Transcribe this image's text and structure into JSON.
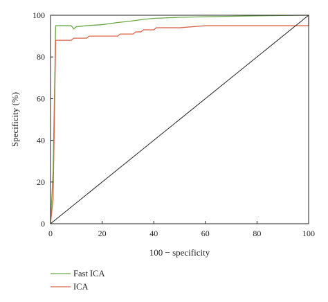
{
  "chart_data": {
    "type": "line",
    "xlabel": "100 − specificity",
    "ylabel": "Specificity (%)",
    "xlim": [
      0,
      100
    ],
    "ylim": [
      0,
      100
    ],
    "x_ticks": [
      0,
      20,
      40,
      60,
      80,
      100
    ],
    "y_ticks": [
      0,
      20,
      40,
      60,
      80,
      100
    ],
    "grid": false,
    "legend_position": "bottom-left",
    "series": [
      {
        "name": "Fast ICA",
        "color": "#6aaa4a",
        "points": [
          [
            0,
            0
          ],
          [
            1,
            25
          ],
          [
            2,
            95
          ],
          [
            4,
            95
          ],
          [
            8,
            95
          ],
          [
            9,
            93.5
          ],
          [
            10,
            94.5
          ],
          [
            14,
            95
          ],
          [
            20,
            95.5
          ],
          [
            26,
            96.5
          ],
          [
            30,
            97
          ],
          [
            36,
            98
          ],
          [
            40,
            98.5
          ],
          [
            50,
            99
          ],
          [
            60,
            99.3
          ],
          [
            70,
            99.5
          ],
          [
            80,
            99.7
          ],
          [
            90,
            99.9
          ],
          [
            100,
            100
          ]
        ]
      },
      {
        "name": "ICA",
        "color": "#d9664a",
        "points": [
          [
            0,
            0
          ],
          [
            1,
            12
          ],
          [
            2,
            88
          ],
          [
            4,
            88
          ],
          [
            8,
            88
          ],
          [
            9,
            89
          ],
          [
            14,
            89
          ],
          [
            15,
            90
          ],
          [
            25,
            90
          ],
          [
            26,
            90
          ],
          [
            27,
            91
          ],
          [
            32,
            91
          ],
          [
            33,
            92
          ],
          [
            35,
            92
          ],
          [
            36,
            93
          ],
          [
            40,
            93
          ],
          [
            41,
            94
          ],
          [
            50,
            94
          ],
          [
            55,
            94.5
          ],
          [
            60,
            95
          ],
          [
            70,
            95
          ],
          [
            80,
            95
          ],
          [
            90,
            95
          ],
          [
            100,
            95
          ],
          [
            100,
            100
          ]
        ]
      },
      {
        "name": "",
        "color": "#222222",
        "points": [
          [
            0,
            0
          ],
          [
            100,
            100
          ]
        ]
      }
    ]
  },
  "axis_color": "#222222"
}
